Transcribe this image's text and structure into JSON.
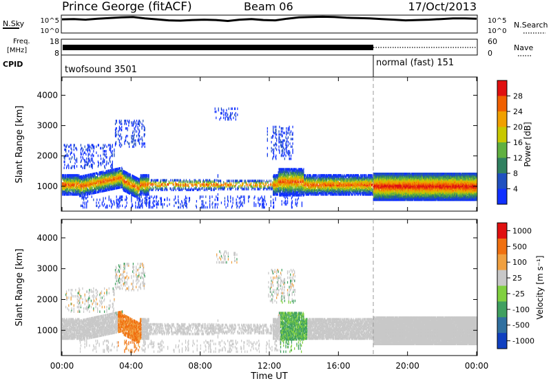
{
  "header": {
    "station": "Prince George (fitACF)",
    "beam": "Beam 06",
    "date": "17/Oct/2013"
  },
  "noise_panel": {
    "left_label": "N.Sky",
    "left_ticks": [
      "10^5",
      "10^0"
    ],
    "right_ticks": [
      "10^5",
      "10^0"
    ],
    "right_label": "N.Search",
    "sky_level_log": [
      4.2,
      4.3,
      4.1,
      4.4,
      4.6,
      4.8,
      4.9,
      4.5,
      4.2,
      3.9,
      3.8,
      4.0,
      4.1,
      4.0,
      3.7,
      4.1,
      4.3,
      4.0,
      3.9,
      4.4,
      4.8,
      4.9,
      5.0,
      4.9,
      4.7,
      4.6,
      4.5,
      4.3,
      4.1,
      3.9,
      4.0,
      4.1,
      4.3,
      4.5,
      4.5,
      4.4
    ]
  },
  "freq_panel": {
    "left_label_top": "Freq.",
    "left_label_bottom": "[MHz]",
    "left_ticks": [
      "18",
      "8"
    ],
    "right_ticks": [
      "60",
      "0"
    ],
    "right_label": "Nave",
    "cpid_label": "CPID"
  },
  "cpid": {
    "modes": [
      {
        "name": "twofsound 3501",
        "start_hour": 0,
        "end_hour": 18
      },
      {
        "name": "normal (fast) 151",
        "start_hour": 18,
        "end_hour": 24
      }
    ]
  },
  "chart_data": [
    {
      "type": "heatmap",
      "quantity": "Power",
      "ylabel": "Slant Range [km]",
      "yticks": [
        "1000",
        "2000",
        "3000",
        "4000"
      ],
      "ylim": [
        180,
        4600
      ],
      "colorbar_label": "Power [dB]",
      "colorbar_ticks": [
        "4",
        "8",
        "12",
        "16",
        "20",
        "24",
        "28"
      ],
      "colors": [
        "#1030ff",
        "#2050c0",
        "#308060",
        "#60b040",
        "#c8c800",
        "#f0a000",
        "#f06000",
        "#e01010"
      ]
    },
    {
      "type": "heatmap",
      "quantity": "Velocity",
      "ylabel": "Slant Range [km]",
      "yticks": [
        "1000",
        "2000",
        "3000",
        "4000"
      ],
      "ylim": [
        180,
        4600
      ],
      "colorbar_label": "Velocity [m s^-1]",
      "colorbar_ticks": [
        "1000",
        "500",
        "100",
        "25",
        "-25",
        "-100",
        "-500",
        "-1000"
      ],
      "colors": [
        "#1040c0",
        "#3070a0",
        "#40a060",
        "#80d040",
        "#c8c8c8",
        "#f0a040",
        "#f07010",
        "#e01010"
      ],
      "xlabel": "Time UT",
      "xticks": [
        "00:00",
        "04:00",
        "08:00",
        "12:00",
        "16:00",
        "20:00",
        "00:00"
      ],
      "xlim_hours": [
        0,
        24
      ]
    }
  ]
}
